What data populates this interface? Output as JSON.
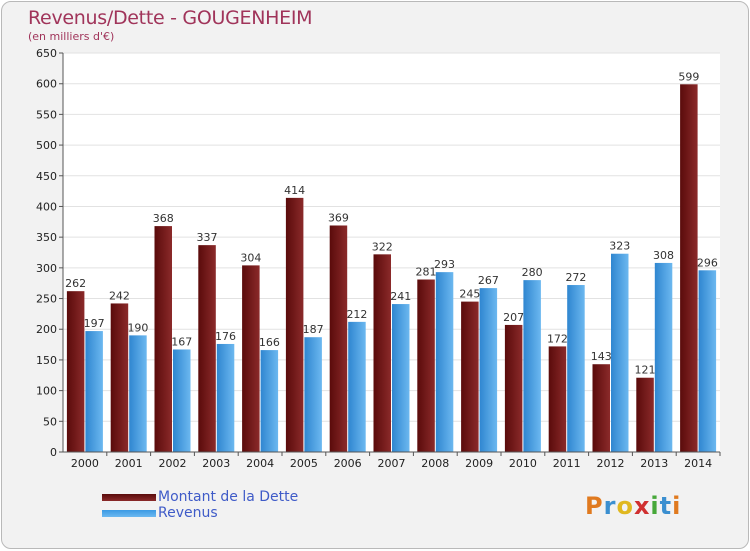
{
  "header": {
    "title": "Revenus/Dette - GOUGENHEIM",
    "subtitle": "(en milliers d'€)"
  },
  "legend": {
    "debt_label": "Montant de la Dette",
    "revenue_label": "Revenus"
  },
  "logo": {
    "text": "Proxiti"
  },
  "colors": {
    "debt_dark": "#5a0b0b",
    "debt_light": "#8b2a2a",
    "revenue_dark": "#2f86d0",
    "revenue_light": "#6cb8f0",
    "title": "#a0345a",
    "legend_text": "#3f5bc8"
  },
  "chart_data": {
    "type": "bar",
    "title": "Revenus/Dette - GOUGENHEIM",
    "subtitle": "(en milliers d'€)",
    "categories": [
      "2000",
      "2001",
      "2002",
      "2003",
      "2004",
      "2005",
      "2006",
      "2007",
      "2008",
      "2009",
      "2010",
      "2011",
      "2012",
      "2013",
      "2014"
    ],
    "series": [
      {
        "name": "Montant de la Dette",
        "values": [
          262,
          242,
          368,
          337,
          304,
          414,
          369,
          322,
          281,
          245,
          207,
          172,
          143,
          121,
          599
        ]
      },
      {
        "name": "Revenus",
        "values": [
          197,
          190,
          167,
          176,
          166,
          187,
          212,
          241,
          293,
          267,
          280,
          272,
          323,
          308,
          296
        ]
      }
    ],
    "ylim": [
      0,
      650
    ],
    "yticks": [
      0,
      50,
      100,
      150,
      200,
      250,
      300,
      350,
      400,
      450,
      500,
      550,
      600,
      650
    ],
    "grid": true,
    "legend_position": "bottom-left"
  }
}
